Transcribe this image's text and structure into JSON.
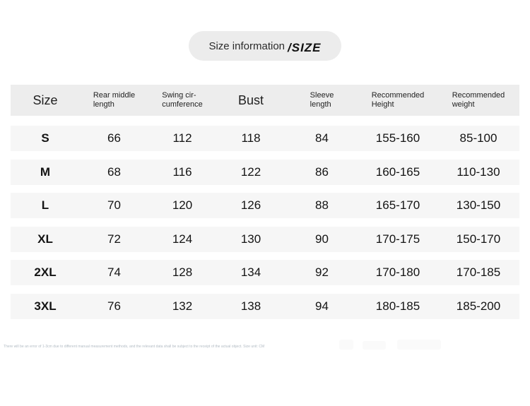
{
  "header": {
    "title": "Size information",
    "title_suffix": "/SIZE"
  },
  "table": {
    "columns": [
      {
        "line1": "Size",
        "line2": ""
      },
      {
        "line1": "Rear middle",
        "line2": "length"
      },
      {
        "line1": "Swing cir-",
        "line2": "cumference"
      },
      {
        "line1": "Bust",
        "line2": ""
      },
      {
        "line1": "Sleeve",
        "line2": "length"
      },
      {
        "line1": "Recommended",
        "line2": "Height"
      },
      {
        "line1": "Recommended",
        "line2": "weight"
      }
    ],
    "rows": [
      {
        "size": "S",
        "rear": "66",
        "swing": "112",
        "bust": "118",
        "sleeve": "84",
        "height": "155-160",
        "weight": "85-100"
      },
      {
        "size": "M",
        "rear": "68",
        "swing": "116",
        "bust": "122",
        "sleeve": "86",
        "height": "160-165",
        "weight": "110-130"
      },
      {
        "size": "L",
        "rear": "70",
        "swing": "120",
        "bust": "126",
        "sleeve": "88",
        "height": "165-170",
        "weight": "130-150"
      },
      {
        "size": "XL",
        "rear": "72",
        "swing": "124",
        "bust": "130",
        "sleeve": "90",
        "height": "170-175",
        "weight": "150-170"
      },
      {
        "size": "2XL",
        "rear": "74",
        "swing": "128",
        "bust": "134",
        "sleeve": "92",
        "height": "170-180",
        "weight": "170-185"
      },
      {
        "size": "3XL",
        "rear": "76",
        "swing": "132",
        "bust": "138",
        "sleeve": "94",
        "height": "180-185",
        "weight": "185-200"
      }
    ]
  },
  "footnote": "There will be an error of 1-3cm due to different manual measurement methods, and the relevant data shall be subject to the receipt of the actual object. Size unit: CM",
  "colors": {
    "header_band": "#ededed",
    "row_band": "#f6f6f6",
    "pill_bg": "#ececec",
    "text": "#141414",
    "footnote_text": "#b3bcc4"
  },
  "chart_data": {
    "type": "table",
    "title": "Size information /SIZE",
    "columns": [
      "Size",
      "Rear middle length",
      "Swing circumference",
      "Bust",
      "Sleeve length",
      "Recommended Height",
      "Recommended weight"
    ],
    "rows": [
      [
        "S",
        66,
        112,
        118,
        84,
        "155-160",
        "85-100"
      ],
      [
        "M",
        68,
        116,
        122,
        86,
        "160-165",
        "110-130"
      ],
      [
        "L",
        70,
        120,
        126,
        88,
        "165-170",
        "130-150"
      ],
      [
        "XL",
        72,
        124,
        130,
        90,
        "170-175",
        "150-170"
      ],
      [
        "2XL",
        74,
        128,
        134,
        92,
        "170-180",
        "170-185"
      ],
      [
        "3XL",
        76,
        132,
        138,
        94,
        "180-185",
        "185-200"
      ]
    ],
    "unit": "CM"
  }
}
